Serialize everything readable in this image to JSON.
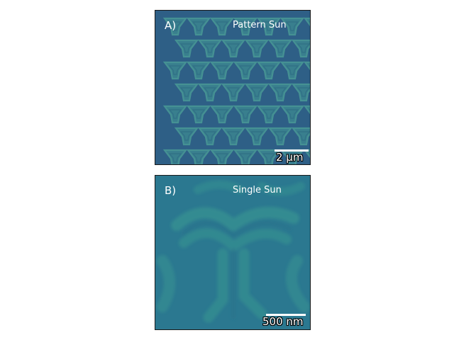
{
  "panels": [
    {
      "letter": "A)",
      "title": "Pattern Sun",
      "scale_label": "2 µm",
      "background_color": "#2e5f86",
      "pattern_color": "#3b8590"
    },
    {
      "letter": "B)",
      "title": "Single Sun",
      "scale_label": "500 nm",
      "background_color": "#2b7890",
      "pattern_color": "#3a9a92"
    }
  ]
}
